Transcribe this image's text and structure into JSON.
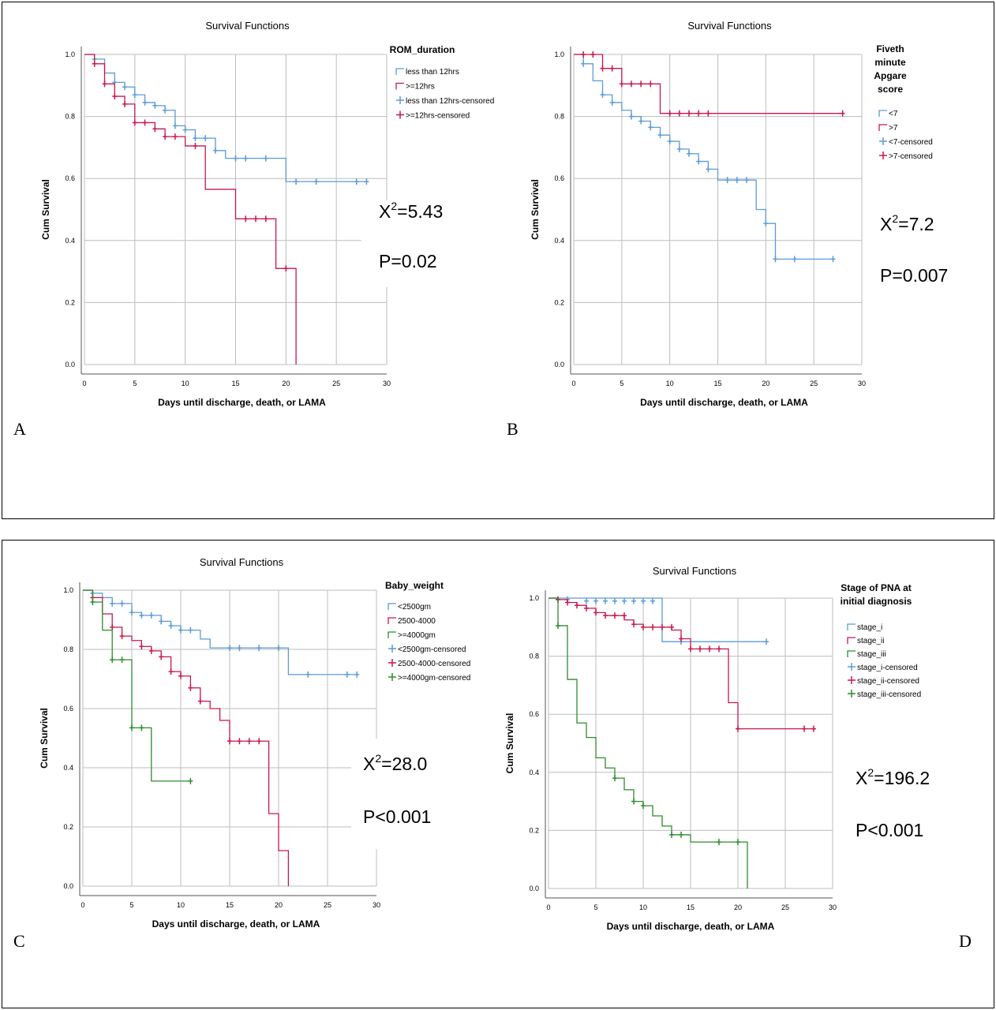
{
  "chart_data": [
    {
      "id": "A",
      "type": "line",
      "panel_label": "A",
      "title": "Survival Functions",
      "xlabel": "Days until discharge, death, or LAMA",
      "ylabel": "Cum Survival",
      "xlim": [
        0,
        30
      ],
      "ylim": [
        0,
        1
      ],
      "xticks": [
        0,
        5,
        10,
        15,
        20,
        25,
        30
      ],
      "yticks": [
        0,
        0.2,
        0.4,
        0.6,
        0.8,
        1.0
      ],
      "grid": true,
      "legend_title": "ROM_duration",
      "legend": [
        "less than 12hrs",
        ">=12hrs",
        "less than 12hrs-censored",
        ">=12hrs-censored"
      ],
      "stat_chi": "X",
      "stat_sup": "2",
      "stat_value": "=5.43",
      "stat_p": "P=0.02",
      "series": [
        {
          "name": "less than 12hrs",
          "color": "#5b9bd5",
          "x": [
            0,
            1,
            2,
            3,
            4,
            5,
            6,
            7,
            8,
            9,
            10,
            11,
            13,
            14,
            20,
            28
          ],
          "y": [
            1.0,
            0.985,
            0.94,
            0.91,
            0.895,
            0.87,
            0.845,
            0.835,
            0.82,
            0.77,
            0.757,
            0.73,
            0.69,
            0.665,
            0.59,
            0.59
          ],
          "censored_x": [
            1,
            3,
            4,
            5,
            6,
            7,
            8,
            9,
            10,
            11,
            12,
            13,
            15,
            16,
            18,
            21,
            23,
            27,
            28
          ],
          "censored_y": [
            0.985,
            0.91,
            0.895,
            0.87,
            0.845,
            0.835,
            0.82,
            0.77,
            0.757,
            0.73,
            0.73,
            0.69,
            0.665,
            0.665,
            0.665,
            0.59,
            0.59,
            0.59,
            0.59
          ]
        },
        {
          "name": ">=12hrs",
          "color": "#c8174b",
          "x": [
            0,
            1,
            2,
            3,
            4,
            5,
            7,
            8,
            10,
            12,
            15,
            19,
            21
          ],
          "y": [
            1.0,
            0.97,
            0.905,
            0.865,
            0.84,
            0.78,
            0.76,
            0.735,
            0.705,
            0.565,
            0.47,
            0.31,
            0.0
          ],
          "censored_x": [
            1,
            2,
            3,
            4,
            5,
            6,
            7,
            8,
            9,
            11,
            16,
            17,
            18,
            20
          ],
          "censored_y": [
            0.97,
            0.905,
            0.865,
            0.84,
            0.78,
            0.78,
            0.76,
            0.735,
            0.735,
            0.705,
            0.47,
            0.47,
            0.47,
            0.31
          ]
        }
      ]
    },
    {
      "id": "B",
      "type": "line",
      "panel_label": "B",
      "title": "Survival Functions",
      "xlabel": "Days until discharge, death, or LAMA",
      "ylabel": "Cum Survival",
      "xlim": [
        0,
        30
      ],
      "ylim": [
        0,
        1
      ],
      "xticks": [
        0,
        5,
        10,
        15,
        20,
        25,
        30
      ],
      "yticks": [
        0,
        0.2,
        0.4,
        0.6,
        0.8,
        1.0
      ],
      "grid": true,
      "legend_title_lines": [
        "Fiveth",
        "minute",
        "Apgare",
        "score"
      ],
      "legend": [
        "<7",
        ">7",
        "<7-censored",
        ">7-censored"
      ],
      "stat_chi": "X",
      "stat_sup": "2",
      "stat_value": "=7.2",
      "stat_p": "P=0.007",
      "series": [
        {
          "name": "<7",
          "color": "#5b9bd5",
          "x": [
            0,
            1,
            2,
            3,
            4,
            5,
            6,
            7,
            8,
            9,
            10,
            11,
            12,
            13,
            14,
            15,
            19,
            20,
            21,
            27
          ],
          "y": [
            1.0,
            0.97,
            0.915,
            0.87,
            0.845,
            0.82,
            0.8,
            0.785,
            0.765,
            0.74,
            0.72,
            0.695,
            0.68,
            0.655,
            0.63,
            0.595,
            0.5,
            0.455,
            0.34,
            0.34
          ],
          "censored_x": [
            1,
            3,
            4,
            6,
            7,
            8,
            9,
            10,
            11,
            12,
            13,
            14,
            16,
            17,
            18,
            20,
            21,
            23,
            27
          ],
          "censored_y": [
            0.97,
            0.87,
            0.845,
            0.8,
            0.785,
            0.765,
            0.74,
            0.72,
            0.695,
            0.68,
            0.655,
            0.63,
            0.595,
            0.595,
            0.595,
            0.455,
            0.34,
            0.34,
            0.34
          ]
        },
        {
          "name": ">7",
          "color": "#c8174b",
          "x": [
            0,
            3,
            5,
            9,
            28
          ],
          "y": [
            1.0,
            0.955,
            0.905,
            0.81,
            0.81
          ],
          "censored_x": [
            1,
            2,
            3,
            4,
            5,
            6,
            7,
            8,
            10,
            11,
            12,
            13,
            14,
            28
          ],
          "censored_y": [
            1.0,
            1.0,
            0.955,
            0.955,
            0.905,
            0.905,
            0.905,
            0.905,
            0.81,
            0.81,
            0.81,
            0.81,
            0.81,
            0.81
          ]
        }
      ]
    },
    {
      "id": "C",
      "type": "line",
      "panel_label": "C",
      "title": "Survival Functions",
      "xlabel": "Days until discharge, death, or LAMA",
      "ylabel": "Cum Survival",
      "xlim": [
        0,
        30
      ],
      "ylim": [
        0,
        1
      ],
      "xticks": [
        0,
        5,
        10,
        15,
        20,
        25,
        30
      ],
      "yticks": [
        0,
        0.2,
        0.4,
        0.6,
        0.8,
        1.0
      ],
      "grid": true,
      "legend_title": "Baby_weight",
      "legend": [
        "<2500gm",
        "2500-4000",
        ">=4000gm",
        "<2500gm-censored",
        "2500-4000-censored",
        ">=4000gm-censored"
      ],
      "stat_chi": "X",
      "stat_sup": "2",
      "stat_value": "=28.0",
      "stat_p": "P<0.001",
      "series": [
        {
          "name": "<2500gm",
          "color": "#5b9bd5",
          "x": [
            0,
            1,
            2,
            3,
            5,
            6,
            8,
            9,
            10,
            12,
            13,
            21,
            28
          ],
          "y": [
            1.0,
            0.99,
            0.975,
            0.955,
            0.925,
            0.915,
            0.895,
            0.88,
            0.865,
            0.835,
            0.805,
            0.715,
            0.715
          ],
          "censored_x": [
            1,
            3,
            4,
            5,
            6,
            7,
            8,
            9,
            10,
            11,
            15,
            16,
            18,
            20,
            23,
            27,
            28
          ],
          "censored_y": [
            0.99,
            0.955,
            0.955,
            0.925,
            0.915,
            0.915,
            0.895,
            0.88,
            0.865,
            0.865,
            0.805,
            0.805,
            0.805,
            0.805,
            0.715,
            0.715,
            0.715
          ]
        },
        {
          "name": "2500-4000",
          "color": "#c8174b",
          "x": [
            0,
            1,
            2,
            3,
            4,
            5,
            6,
            7,
            8,
            9,
            10,
            11,
            12,
            13,
            14,
            15,
            19,
            20,
            21
          ],
          "y": [
            1.0,
            0.975,
            0.92,
            0.875,
            0.845,
            0.83,
            0.81,
            0.795,
            0.775,
            0.725,
            0.71,
            0.67,
            0.625,
            0.6,
            0.56,
            0.49,
            0.245,
            0.12,
            0.0
          ],
          "censored_x": [
            1,
            3,
            4,
            6,
            7,
            8,
            9,
            10,
            11,
            12,
            15,
            16,
            17,
            18
          ],
          "censored_y": [
            0.975,
            0.875,
            0.845,
            0.81,
            0.795,
            0.775,
            0.725,
            0.71,
            0.67,
            0.625,
            0.49,
            0.49,
            0.49,
            0.49
          ]
        },
        {
          "name": ">=4000gm",
          "color": "#2e8b2e",
          "x": [
            0,
            1,
            2,
            3,
            5,
            7,
            11
          ],
          "y": [
            1.0,
            0.96,
            0.865,
            0.765,
            0.535,
            0.355,
            0.355
          ],
          "censored_x": [
            1,
            3,
            4,
            5,
            6,
            11
          ],
          "censored_y": [
            0.96,
            0.765,
            0.765,
            0.535,
            0.535,
            0.355
          ]
        }
      ]
    },
    {
      "id": "D",
      "type": "line",
      "panel_label": "D",
      "title": "Survival Functions",
      "xlabel": "Days until discharge, death, or LAMA",
      "ylabel": "Cum Survival",
      "xlim": [
        0,
        30
      ],
      "ylim": [
        0,
        1
      ],
      "xticks": [
        0,
        5,
        10,
        15,
        20,
        25,
        30
      ],
      "yticks": [
        0,
        0.2,
        0.4,
        0.6,
        0.8,
        1.0
      ],
      "grid": true,
      "legend_title_lines": [
        "Stage of PNA at",
        "initial diagnosis"
      ],
      "legend": [
        "stage_i",
        "stage_ii",
        "stage_iii",
        "stage_i-censored",
        "stage_ii-censored",
        "stage_iii-censored"
      ],
      "stat_chi": "X",
      "stat_sup": "2",
      "stat_value": "=196.2",
      "stat_p": "P<0.001",
      "series": [
        {
          "name": "stage_i",
          "color": "#5b9bd5",
          "x": [
            0,
            12,
            23
          ],
          "y": [
            1.0,
            0.85,
            0.85
          ],
          "censored_x": [
            1,
            2,
            4,
            5,
            6,
            7,
            8,
            9,
            10,
            11,
            14,
            23
          ],
          "censored_y": [
            0.995,
            0.995,
            0.99,
            0.99,
            0.99,
            0.99,
            0.99,
            0.99,
            0.99,
            0.99,
            0.85,
            0.85
          ]
        },
        {
          "name": "stage_ii",
          "color": "#c8174b",
          "x": [
            0,
            1,
            2,
            3,
            4,
            5,
            6,
            8,
            9,
            10,
            13,
            14,
            15,
            19,
            20,
            28
          ],
          "y": [
            1.0,
            0.995,
            0.985,
            0.975,
            0.965,
            0.95,
            0.94,
            0.925,
            0.91,
            0.9,
            0.89,
            0.86,
            0.825,
            0.64,
            0.55,
            0.55
          ],
          "censored_x": [
            1,
            2,
            3,
            4,
            5,
            6,
            7,
            8,
            9,
            10,
            11,
            12,
            13,
            14,
            15,
            16,
            17,
            18,
            20,
            27,
            28
          ],
          "censored_y": [
            0.995,
            0.985,
            0.975,
            0.965,
            0.95,
            0.94,
            0.94,
            0.94,
            0.91,
            0.9,
            0.9,
            0.9,
            0.9,
            0.86,
            0.825,
            0.825,
            0.825,
            0.825,
            0.55,
            0.55,
            0.55
          ]
        },
        {
          "name": "stage_iii",
          "color": "#2e8b2e",
          "x": [
            0,
            1,
            2,
            3,
            4,
            5,
            6,
            7,
            8,
            9,
            10,
            11,
            12,
            13,
            15,
            21
          ],
          "y": [
            1.0,
            0.905,
            0.72,
            0.57,
            0.52,
            0.45,
            0.415,
            0.38,
            0.34,
            0.3,
            0.285,
            0.25,
            0.215,
            0.185,
            0.16,
            0.0
          ],
          "censored_x": [
            1,
            7,
            9,
            10,
            13,
            14,
            18,
            20
          ],
          "censored_y": [
            0.905,
            0.38,
            0.3,
            0.285,
            0.185,
            0.185,
            0.16,
            0.16
          ]
        }
      ]
    }
  ]
}
